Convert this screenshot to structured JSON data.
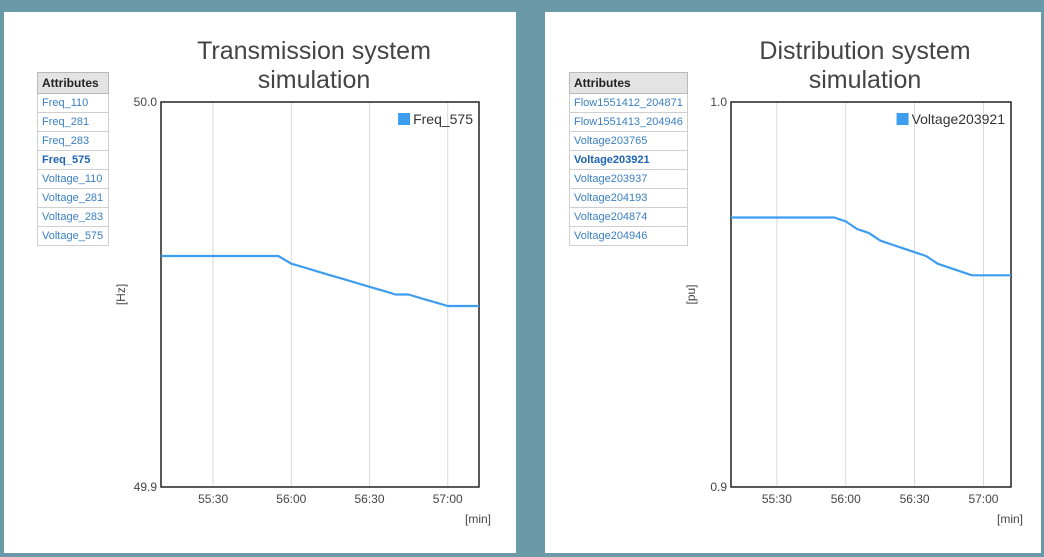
{
  "colors": {
    "background": "#6a9aa8",
    "series": "#3d9ef0",
    "grid": "#d9d9d9",
    "link": "#3a7fc2"
  },
  "charts": [
    {
      "title_line1": "Transmission system",
      "title_line2": "simulation",
      "attributes_header": "Attributes",
      "attributes": [
        "Freq_110",
        "Freq_281",
        "Freq_283",
        "Freq_575",
        "Voltage_110",
        "Voltage_281",
        "Voltage_283",
        "Voltage_575"
      ],
      "selected_attribute": "Freq_575",
      "y_unit": "[Hz]",
      "x_unit": "[min]",
      "y_tick_top": "50.0",
      "y_tick_bottom": "49.9",
      "x_ticks": [
        "55:30",
        "56:00",
        "56:30",
        "57:00"
      ],
      "legend": "Freq_575"
    },
    {
      "title_line1": "Distribution system",
      "title_line2": "simulation",
      "attributes_header": "Attributes",
      "attributes": [
        "Flow1551412_204871",
        "Flow1551413_204946",
        "Voltage203765",
        "Voltage203921",
        "Voltage203937",
        "Voltage204193",
        "Voltage204874",
        "Voltage204946"
      ],
      "selected_attribute": "Voltage203921",
      "y_unit": "[pu]",
      "x_unit": "[min]",
      "y_tick_top": "1.0",
      "y_tick_bottom": "0.9",
      "x_ticks": [
        "55:30",
        "56:00",
        "56:30",
        "57:00"
      ],
      "legend": "Voltage203921"
    }
  ],
  "chart_data": [
    {
      "type": "line",
      "title": "Transmission system simulation",
      "xlabel": "[min]",
      "ylabel": "[Hz]",
      "x_tick_labels": [
        "55:30",
        "56:00",
        "56:30",
        "57:00"
      ],
      "xlim": [
        "55:10",
        "57:12"
      ],
      "ylim": [
        49.9,
        50.0
      ],
      "grid": "vertical",
      "legend_position": "top-right",
      "series": [
        {
          "name": "Freq_575",
          "x": [
            "55:10",
            "55:20",
            "55:30",
            "55:40",
            "55:50",
            "55:55",
            "56:00",
            "56:05",
            "56:10",
            "56:15",
            "56:20",
            "56:25",
            "56:30",
            "56:35",
            "56:40",
            "56:45",
            "56:50",
            "56:55",
            "57:00",
            "57:05",
            "57:12"
          ],
          "y": [
            49.96,
            49.96,
            49.96,
            49.96,
            49.96,
            49.96,
            49.958,
            49.957,
            49.956,
            49.955,
            49.954,
            49.953,
            49.952,
            49.951,
            49.95,
            49.95,
            49.949,
            49.948,
            49.947,
            49.947,
            49.947
          ]
        }
      ]
    },
    {
      "type": "line",
      "title": "Distribution system simulation",
      "xlabel": "[min]",
      "ylabel": "[pu]",
      "x_tick_labels": [
        "55:30",
        "56:00",
        "56:30",
        "57:00"
      ],
      "xlim": [
        "55:10",
        "57:12"
      ],
      "ylim": [
        0.9,
        1.0
      ],
      "grid": "vertical",
      "legend_position": "top-right",
      "series": [
        {
          "name": "Voltage203921",
          "x": [
            "55:10",
            "55:20",
            "55:30",
            "55:40",
            "55:50",
            "55:55",
            "56:00",
            "56:05",
            "56:10",
            "56:15",
            "56:20",
            "56:25",
            "56:30",
            "56:35",
            "56:40",
            "56:45",
            "56:50",
            "56:55",
            "57:00",
            "57:05",
            "57:12"
          ],
          "y": [
            0.97,
            0.97,
            0.97,
            0.97,
            0.97,
            0.97,
            0.969,
            0.967,
            0.966,
            0.964,
            0.963,
            0.962,
            0.961,
            0.96,
            0.958,
            0.957,
            0.956,
            0.955,
            0.955,
            0.955,
            0.955
          ]
        }
      ]
    }
  ]
}
